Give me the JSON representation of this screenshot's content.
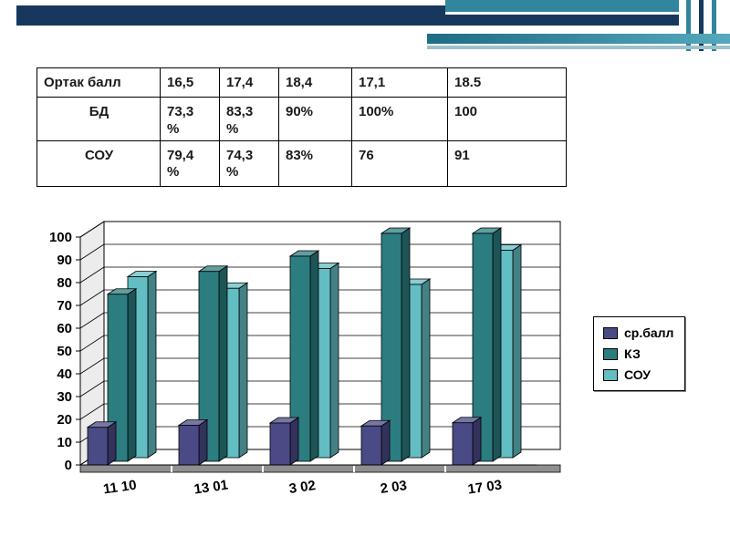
{
  "theme": {
    "navy": "#17375E",
    "teal": "#31859C",
    "floor_gray": "#8f8f8f",
    "wall_gray": "#ececec"
  },
  "table": {
    "rows": [
      [
        "Ортак балл",
        "16,5",
        "17,4",
        "18,4",
        "17,1",
        "18.5"
      ],
      [
        "БД",
        "73,3\n%",
        "83,3\n%",
        "90%",
        "100%",
        "100"
      ],
      [
        "СОУ",
        "79,4\n%",
        "74,3\n%",
        "83%",
        "76",
        "91"
      ]
    ]
  },
  "chart_data": {
    "type": "bar",
    "style": "3d",
    "title": "",
    "xlabel": "",
    "ylabel": "",
    "categories": [
      "11 10",
      "13 01",
      "3 02",
      "2 03",
      "17 03"
    ],
    "series": [
      {
        "name": "ср.балл",
        "color": "#4a4a87",
        "values": [
          16.5,
          17.4,
          18.4,
          17.1,
          18.5
        ]
      },
      {
        "name": "КЗ",
        "color": "#2b7d80",
        "values": [
          73.3,
          83.3,
          90,
          100,
          100
        ]
      },
      {
        "name": "СОУ",
        "color": "#63bec3",
        "values": [
          79.4,
          74.3,
          83,
          76,
          91
        ]
      }
    ],
    "ylim": [
      0,
      100
    ],
    "ytick_step": 10,
    "grid": true,
    "legend_position": "right"
  }
}
